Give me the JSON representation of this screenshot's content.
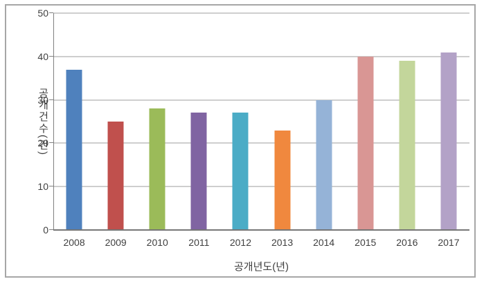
{
  "chart_data": {
    "type": "bar",
    "categories": [
      "2008",
      "2009",
      "2010",
      "2011",
      "2012",
      "2013",
      "2014",
      "2015",
      "2016",
      "2017"
    ],
    "values": [
      37,
      25,
      28,
      27,
      27,
      23,
      30,
      40,
      39,
      41
    ],
    "bar_colors": [
      "#4F81BD",
      "#C0504D",
      "#9BBB59",
      "#8064A2",
      "#4BACC6",
      "#F0883E",
      "#95B3D7",
      "#D99694",
      "#C3D69B",
      "#B3A2C7"
    ],
    "title": "",
    "xlabel": "공개년도(년)",
    "ylabel": "공개건수(건)",
    "ylim": [
      0,
      50
    ],
    "yticks": [
      0,
      10,
      20,
      30,
      40,
      50
    ],
    "grid": "horizontal",
    "legend": "none"
  },
  "colors": {
    "background": "#ffffff",
    "frame_border": "#a6a6a6",
    "gridline": "#9d9d9d",
    "axis_line": "#767676",
    "text": "#3f3f3f"
  }
}
